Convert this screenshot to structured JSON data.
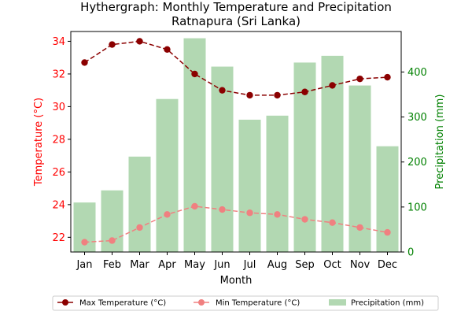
{
  "chart_data": {
    "type": "bar+line",
    "title_line1": "Hythergraph: Monthly Temperature and Precipitation",
    "title_line2": "Ratnapura (Sri Lanka)",
    "xlabel": "Month",
    "ylabel_left": "Temperature (°C)",
    "ylabel_right": "Precipitation (mm)",
    "categories": [
      "Jan",
      "Feb",
      "Mar",
      "Apr",
      "May",
      "Jun",
      "Jul",
      "Aug",
      "Sep",
      "Oct",
      "Nov",
      "Dec"
    ],
    "ylim_left": [
      21.1,
      34.6
    ],
    "ylim_right": [
      0,
      490
    ],
    "yticks_left": [
      22,
      24,
      26,
      28,
      30,
      32,
      34
    ],
    "yticks_right": [
      0,
      100,
      200,
      300,
      400
    ],
    "series": [
      {
        "name": "Max Temperature (°C)",
        "axis": "left",
        "kind": "line",
        "color": "#8b0000",
        "values": [
          32.7,
          33.8,
          34.0,
          33.5,
          32.0,
          31.0,
          30.7,
          30.7,
          30.9,
          31.3,
          31.7,
          31.8
        ]
      },
      {
        "name": "Min Temperature (°C)",
        "axis": "left",
        "kind": "line",
        "color": "#f08080",
        "values": [
          21.7,
          21.8,
          22.6,
          23.4,
          23.9,
          23.7,
          23.5,
          23.4,
          23.1,
          22.9,
          22.6,
          22.3
        ]
      },
      {
        "name": "Precipitation (mm)",
        "axis": "right",
        "kind": "bar",
        "color": "#b2d8b2",
        "values": [
          110,
          137,
          212,
          340,
          475,
          412,
          294,
          303,
          421,
          436,
          370,
          235
        ]
      }
    ],
    "left_axis_color": "#ff0000",
    "right_axis_color": "#008000",
    "grid": false,
    "legend_position": "bottom"
  }
}
